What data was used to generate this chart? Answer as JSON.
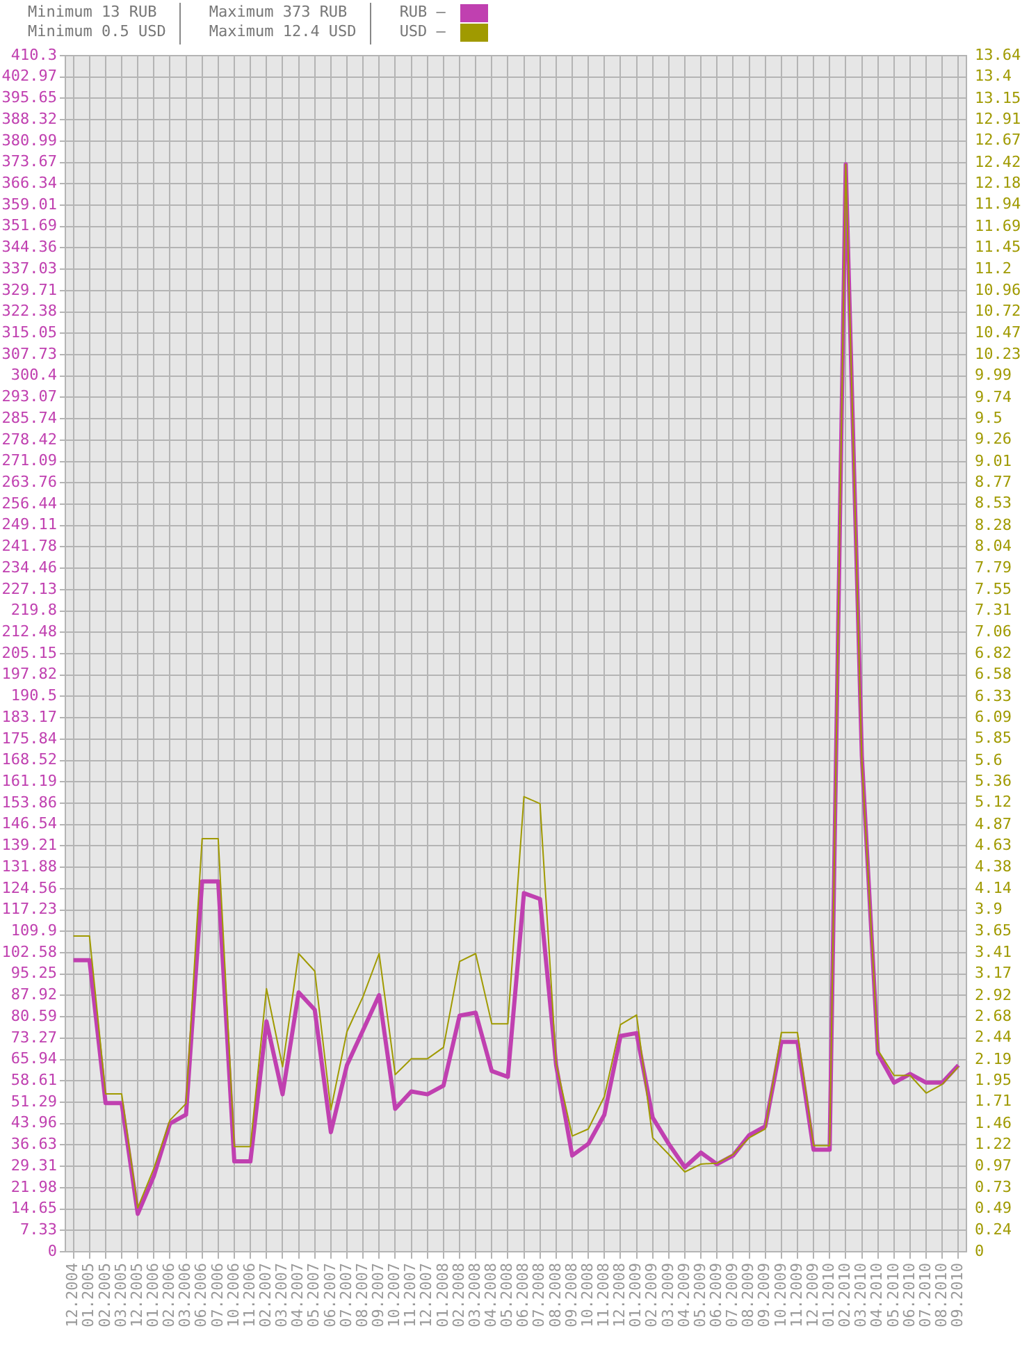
{
  "chart_data": {
    "type": "line",
    "annotations": [
      "Minimum 13 RUB",
      "Minimum 0.5 USD",
      "Maximum 373 RUB",
      "Maximum 12.4 USD"
    ],
    "categories": [
      "12.2004",
      "01.2005",
      "02.2005",
      "03.2005",
      "12.2005",
      "01.2006",
      "02.2006",
      "03.2006",
      "06.2006",
      "07.2006",
      "10.2006",
      "11.2006",
      "02.2007",
      "03.2007",
      "04.2007",
      "05.2007",
      "06.2007",
      "07.2007",
      "08.2007",
      "09.2007",
      "10.2007",
      "11.2007",
      "12.2007",
      "01.2008",
      "02.2008",
      "03.2008",
      "04.2008",
      "05.2008",
      "06.2008",
      "07.2008",
      "08.2008",
      "09.2008",
      "10.2008",
      "11.2008",
      "12.2008",
      "01.2009",
      "02.2009",
      "03.2009",
      "04.2009",
      "05.2009",
      "06.2009",
      "07.2009",
      "08.2009",
      "09.2009",
      "10.2009",
      "11.2009",
      "12.2009",
      "01.2010",
      "02.2010",
      "03.2010",
      "04.2010",
      "05.2010",
      "06.2010",
      "07.2010",
      "08.2010",
      "09.2010"
    ],
    "series": [
      {
        "name": "RUB –",
        "color": "#c040b0",
        "values": [
          100,
          100,
          51,
          51,
          13,
          26,
          44,
          47,
          127,
          127,
          31,
          31,
          79,
          54,
          89,
          83,
          41,
          64,
          76,
          88,
          49,
          55,
          54,
          57,
          81,
          82,
          62,
          60,
          123,
          121,
          64,
          33,
          37,
          47,
          74,
          75,
          46,
          37,
          29,
          34,
          30,
          33,
          40,
          43,
          72,
          72,
          35,
          35,
          373,
          170,
          68,
          58,
          61,
          58,
          58,
          64
        ]
      },
      {
        "name": "USD –",
        "color": "#a09a00",
        "axis": "y2",
        "values": [
          3.6,
          3.6,
          1.8,
          1.8,
          0.5,
          0.95,
          1.5,
          1.69,
          4.71,
          4.71,
          1.2,
          1.2,
          3.0,
          2.11,
          3.4,
          3.2,
          1.62,
          2.51,
          2.91,
          3.4,
          2.02,
          2.2,
          2.2,
          2.33,
          3.31,
          3.4,
          2.6,
          2.6,
          5.19,
          5.11,
          2.15,
          1.32,
          1.4,
          1.77,
          2.59,
          2.7,
          1.3,
          1.11,
          0.91,
          1.0,
          1.01,
          1.11,
          1.3,
          1.4,
          2.5,
          2.5,
          1.21,
          1.21,
          12.4,
          5.6,
          2.3,
          2.01,
          2.01,
          1.81,
          1.91,
          2.11
        ]
      }
    ],
    "ylim": [
      0,
      410.3
    ],
    "yticks": [
      0,
      7.33,
      14.65,
      21.98,
      29.31,
      36.63,
      43.96,
      51.29,
      58.61,
      65.94,
      73.27,
      80.59,
      87.92,
      95.25,
      102.58,
      109.9,
      117.23,
      124.56,
      131.88,
      139.21,
      146.54,
      153.86,
      161.19,
      168.52,
      175.84,
      183.17,
      190.5,
      197.82,
      205.15,
      212.48,
      219.8,
      227.13,
      234.46,
      241.78,
      249.11,
      256.44,
      263.76,
      271.09,
      278.42,
      285.74,
      293.07,
      300.4,
      307.73,
      315.05,
      322.38,
      329.71,
      337.03,
      344.36,
      351.69,
      359.01,
      366.34,
      373.67,
      380.99,
      388.32,
      395.65,
      402.97,
      410.3
    ],
    "y2lim": [
      0,
      13.64
    ],
    "y2ticks": [
      0,
      0.24,
      0.49,
      0.73,
      0.97,
      1.22,
      1.46,
      1.71,
      1.95,
      2.19,
      2.44,
      2.68,
      2.92,
      3.17,
      3.41,
      3.65,
      3.9,
      4.14,
      4.38,
      4.63,
      4.87,
      5.12,
      5.36,
      5.6,
      5.85,
      6.09,
      6.33,
      6.58,
      6.82,
      7.06,
      7.31,
      7.55,
      7.79,
      8.04,
      8.28,
      8.53,
      8.77,
      9.01,
      9.26,
      9.5,
      9.74,
      9.99,
      10.23,
      10.47,
      10.72,
      10.96,
      11.2,
      11.45,
      11.69,
      11.94,
      12.18,
      12.42,
      12.67,
      12.91,
      13.15,
      13.4,
      13.64
    ],
    "grid": true,
    "legend": "top",
    "marker": "none",
    "line_style": "solid"
  }
}
